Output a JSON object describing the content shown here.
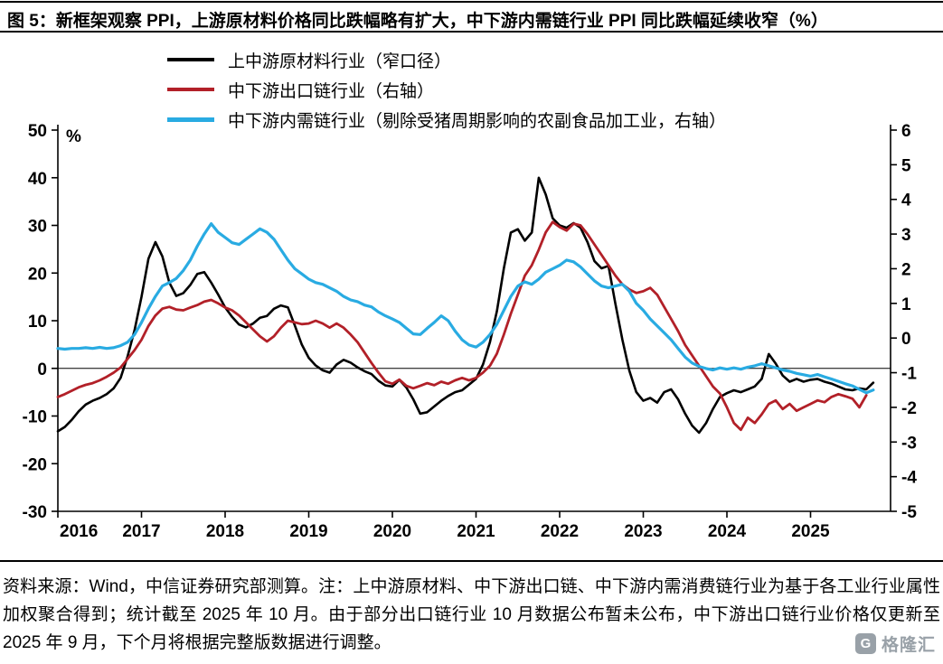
{
  "figure": {
    "title": "图 5：新框架观察 PPI，上游原材料价格同比跌幅略有扩大，中下游内需链行业 PPI 同比跌幅延续收窄（%）",
    "source_note": "资料来源：Wind，中信证券研究部测算。注：上中游原材料、中下游出口链、中下游内需消费链行业为基于各工业行业属性加权聚合得到；统计截至 2025 年 10 月。由于部分出口链行业 10 月数据公布暂未公布，中下游出口链行业价格仅更新至 2025 年 9 月，下个月将根据完整版数据进行调整。",
    "logo_text": "格隆汇",
    "logo_glyph": "G"
  },
  "chart_data": {
    "type": "line",
    "x_unit": "month",
    "x_start": "2016-01",
    "x_tick_labels": [
      "2016",
      "2017",
      "2018",
      "2019",
      "2020",
      "2021",
      "2022",
      "2023",
      "2024",
      "2025"
    ],
    "left_axis": {
      "label": "%",
      "min": -30,
      "max": 50,
      "step": 10,
      "ticks": [
        50,
        40,
        30,
        20,
        10,
        0,
        -10,
        -20,
        -30
      ]
    },
    "right_axis": {
      "min": -5,
      "max": 6,
      "step": 1,
      "ticks": [
        6,
        5,
        4,
        3,
        2,
        1,
        0,
        -1,
        -2,
        -3,
        -4,
        -5
      ]
    },
    "grid": false,
    "legend_position": "top-left",
    "series": [
      {
        "name": "上中游原材料行业（窄口径）",
        "axis": "left",
        "color": "#000000",
        "values": [
          -13.2,
          -12.3,
          -10.8,
          -9.0,
          -7.6,
          -6.8,
          -6.2,
          -5.4,
          -4.2,
          -2.0,
          2.5,
          8.0,
          15.0,
          23.0,
          26.5,
          23.5,
          18.0,
          15.2,
          15.8,
          17.5,
          19.8,
          20.2,
          18.0,
          15.5,
          12.8,
          10.8,
          9.2,
          8.6,
          9.4,
          10.6,
          11.0,
          12.5,
          13.2,
          12.8,
          9.0,
          5.0,
          2.2,
          0.6,
          -0.4,
          -0.9,
          0.8,
          1.8,
          1.2,
          0.2,
          -0.6,
          -1.2,
          -2.6,
          -3.6,
          -3.8,
          -2.4,
          -4.0,
          -6.5,
          -9.5,
          -9.2,
          -8.0,
          -6.8,
          -5.8,
          -5.0,
          -4.6,
          -3.4,
          -2.2,
          0.8,
          5.5,
          12.0,
          21.0,
          28.5,
          29.2,
          26.8,
          28.5,
          40.0,
          36.5,
          31.5,
          30.0,
          29.5,
          30.5,
          29.5,
          26.5,
          22.5,
          21.0,
          21.5,
          13.5,
          6.0,
          -0.5,
          -5.0,
          -6.8,
          -6.2,
          -7.2,
          -5.0,
          -4.4,
          -6.5,
          -9.5,
          -12.0,
          -13.5,
          -11.5,
          -8.5,
          -6.0,
          -5.2,
          -4.6,
          -5.0,
          -4.4,
          -3.8,
          -2.2,
          3.0,
          1.0,
          -1.5,
          -2.8,
          -2.2,
          -2.8,
          -2.4,
          -2.2,
          -2.8,
          -3.2,
          -3.8,
          -4.4,
          -4.6,
          -4.2,
          -4.4,
          -3.0
        ]
      },
      {
        "name": "中下游出口链行业（右轴）",
        "axis": "right",
        "color": "#b22028",
        "values": [
          -1.7,
          -1.62,
          -1.52,
          -1.42,
          -1.35,
          -1.3,
          -1.22,
          -1.12,
          -1.0,
          -0.85,
          -0.6,
          -0.35,
          -0.05,
          0.35,
          0.65,
          0.85,
          0.9,
          0.82,
          0.8,
          0.88,
          0.95,
          1.05,
          1.1,
          1.0,
          0.88,
          0.8,
          0.65,
          0.45,
          0.25,
          0.05,
          -0.1,
          0.05,
          0.3,
          0.5,
          0.45,
          0.4,
          0.42,
          0.5,
          0.42,
          0.3,
          0.42,
          0.3,
          0.1,
          -0.12,
          -0.42,
          -0.72,
          -1.0,
          -1.25,
          -1.32,
          -1.2,
          -1.38,
          -1.45,
          -1.38,
          -1.3,
          -1.36,
          -1.26,
          -1.32,
          -1.22,
          -1.15,
          -1.22,
          -1.15,
          -1.0,
          -0.8,
          -0.45,
          0.1,
          0.7,
          1.25,
          1.8,
          2.1,
          2.55,
          3.05,
          3.35,
          3.2,
          3.1,
          3.3,
          3.25,
          3.0,
          2.7,
          2.4,
          2.1,
          1.8,
          1.55,
          1.4,
          1.3,
          1.35,
          1.45,
          1.25,
          0.9,
          0.55,
          0.2,
          -0.2,
          -0.5,
          -0.8,
          -1.1,
          -1.4,
          -1.6,
          -2.0,
          -2.45,
          -2.65,
          -2.3,
          -2.45,
          -2.2,
          -1.9,
          -1.8,
          -2.05,
          -1.9,
          -2.1,
          -2.0,
          -1.9,
          -1.8,
          -1.85,
          -1.7,
          -1.62,
          -1.68,
          -1.75,
          -2.0,
          -1.65
        ]
      },
      {
        "name": "中下游内需链行业（剔除受猪周期影响的农副食品加工业，右轴）",
        "axis": "right",
        "color": "#29abe2",
        "values": [
          -0.3,
          -0.32,
          -0.3,
          -0.3,
          -0.28,
          -0.3,
          -0.27,
          -0.3,
          -0.28,
          -0.22,
          -0.12,
          0.1,
          0.45,
          0.85,
          1.2,
          1.5,
          1.6,
          1.72,
          1.95,
          2.25,
          2.65,
          3.0,
          3.3,
          3.05,
          2.9,
          2.75,
          2.7,
          2.85,
          3.0,
          3.15,
          3.05,
          2.85,
          2.55,
          2.25,
          2.0,
          1.85,
          1.7,
          1.6,
          1.55,
          1.45,
          1.35,
          1.2,
          1.1,
          1.05,
          0.95,
          0.9,
          0.75,
          0.64,
          0.55,
          0.45,
          0.28,
          0.12,
          0.1,
          0.28,
          0.45,
          0.64,
          0.5,
          0.2,
          -0.05,
          -0.2,
          -0.26,
          -0.12,
          0.1,
          0.4,
          0.8,
          1.2,
          1.5,
          1.62,
          1.55,
          1.7,
          1.9,
          2.0,
          2.1,
          2.25,
          2.2,
          2.05,
          1.85,
          1.65,
          1.5,
          1.45,
          1.5,
          1.55,
          1.35,
          1.0,
          0.8,
          0.55,
          0.35,
          0.15,
          -0.05,
          -0.3,
          -0.55,
          -0.72,
          -0.82,
          -0.88,
          -0.92,
          -0.86,
          -0.9,
          -0.86,
          -0.9,
          -0.84,
          -0.8,
          -0.74,
          -0.8,
          -0.86,
          -0.92,
          -0.96,
          -1.02,
          -1.06,
          -1.1,
          -1.05,
          -1.12,
          -1.18,
          -1.25,
          -1.32,
          -1.38,
          -1.48,
          -1.58,
          -1.5
        ]
      }
    ]
  }
}
